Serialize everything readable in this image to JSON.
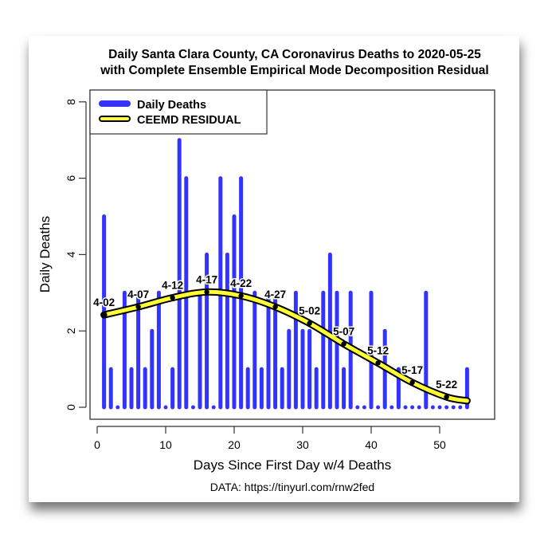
{
  "chart_data": {
    "type": "bar",
    "title": "Daily Santa Clara County, CA Coronavirus Deaths to 2020-05-25",
    "subtitle": "with Complete Ensemble Empirical Mode Decomposition Residual",
    "xlabel": "Days Since First Day w/4 Deaths",
    "ylabel": "Daily Deaths",
    "source": "DATA: https://tinyurl.com/rnw2fed",
    "xlim": [
      0,
      55
    ],
    "ylim": [
      0,
      8
    ],
    "xticks": [
      0,
      10,
      20,
      30,
      40,
      50
    ],
    "yticks": [
      0,
      2,
      4,
      6,
      8
    ],
    "x": [
      1,
      2,
      3,
      4,
      5,
      6,
      7,
      8,
      9,
      10,
      11,
      12,
      13,
      14,
      15,
      16,
      17,
      18,
      19,
      20,
      21,
      22,
      23,
      24,
      25,
      26,
      27,
      28,
      29,
      30,
      31,
      32,
      33,
      34,
      35,
      36,
      37,
      38,
      39,
      40,
      41,
      42,
      43,
      44,
      45,
      46,
      47,
      48,
      49,
      50,
      51,
      52,
      53,
      54
    ],
    "series": [
      {
        "name": "Daily Deaths",
        "type": "bar",
        "color": "#3333ff",
        "values": [
          5,
          1,
          0,
          3,
          1,
          3,
          1,
          2,
          3,
          0,
          1,
          7,
          6,
          0,
          3,
          4,
          0,
          6,
          4,
          5,
          6,
          1,
          3,
          1,
          3,
          3,
          1,
          2,
          3,
          2,
          2,
          1,
          3,
          4,
          3,
          1,
          3,
          0,
          0,
          3,
          0,
          2,
          0,
          1,
          0,
          0,
          0,
          3,
          0,
          0,
          0,
          0,
          0,
          1
        ]
      },
      {
        "name": "CEEMD RESIDUAL",
        "type": "line",
        "color": "#ffff33",
        "outline": "#000000",
        "points": [
          [
            1,
            2.42
          ],
          [
            6,
            2.63
          ],
          [
            11,
            2.87
          ],
          [
            16,
            3.02
          ],
          [
            21,
            2.92
          ],
          [
            26,
            2.63
          ],
          [
            31,
            2.2
          ],
          [
            36,
            1.66
          ],
          [
            41,
            1.16
          ],
          [
            46,
            0.65
          ],
          [
            51,
            0.27
          ],
          [
            54,
            0.17
          ]
        ]
      }
    ],
    "markers": [
      {
        "label": "4-02",
        "day": 1,
        "value": 2.42
      },
      {
        "label": "4-07",
        "day": 6,
        "value": 2.63
      },
      {
        "label": "4-12",
        "day": 11,
        "value": 2.87
      },
      {
        "label": "4-17",
        "day": 16,
        "value": 3.02
      },
      {
        "label": "4-22",
        "day": 21,
        "value": 2.92
      },
      {
        "label": "4-27",
        "day": 26,
        "value": 2.63
      },
      {
        "label": "5-02",
        "day": 31,
        "value": 2.2
      },
      {
        "label": "5-07",
        "day": 36,
        "value": 1.66
      },
      {
        "label": "5-12",
        "day": 41,
        "value": 1.16
      },
      {
        "label": "5-17",
        "day": 46,
        "value": 0.65
      },
      {
        "label": "5-22",
        "day": 51,
        "value": 0.27
      }
    ],
    "legend": {
      "position": "top-left",
      "entries": [
        "Daily Deaths",
        "CEEMD RESIDUAL"
      ]
    },
    "grid": false
  }
}
